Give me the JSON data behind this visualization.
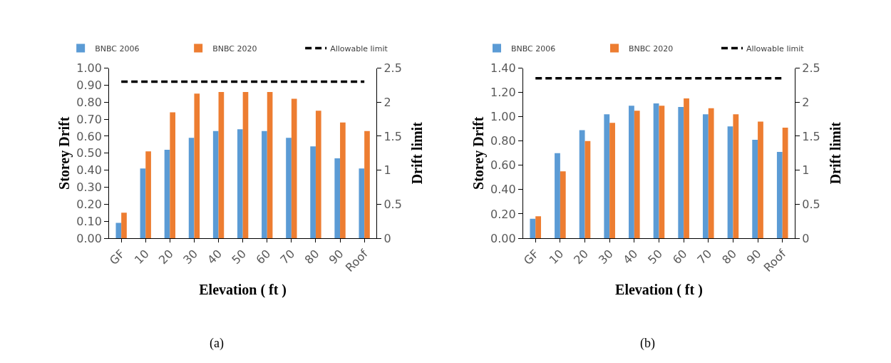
{
  "chart_data": [
    {
      "type": "bar",
      "xlabel": "Elevation ( ft )",
      "ylabel": "Storey Drift",
      "y2label": "Drift limit",
      "categories": [
        "GF",
        "10",
        "20",
        "30",
        "40",
        "50",
        "60",
        "70",
        "80",
        "90",
        "Roof"
      ],
      "series": [
        {
          "name": "BNBC 2006",
          "color": "#5b9bd5",
          "values": [
            0.09,
            0.41,
            0.52,
            0.59,
            0.63,
            0.64,
            0.63,
            0.59,
            0.54,
            0.47,
            0.41
          ]
        },
        {
          "name": "BNBC 2020",
          "color": "#ed7d31",
          "values": [
            0.15,
            0.51,
            0.74,
            0.85,
            0.86,
            0.86,
            0.86,
            0.82,
            0.75,
            0.68,
            0.63
          ]
        },
        {
          "name": "Allowable limit",
          "color": "#000000",
          "type": "line",
          "axis": "y2",
          "line_style": "dashed",
          "values": [
            2.3,
            2.3,
            2.3,
            2.3,
            2.3,
            2.3,
            2.3,
            2.3,
            2.3,
            2.3,
            2.3
          ]
        }
      ],
      "ylim": [
        0,
        1.0
      ],
      "yticks": [
        {
          "value": 0,
          "label": "0.00"
        },
        {
          "value": 0.1,
          "label": "0.10"
        },
        {
          "value": 0.2,
          "label": "0.20"
        },
        {
          "value": 0.3,
          "label": "0.30"
        },
        {
          "value": 0.4,
          "label": "0.40"
        },
        {
          "value": 0.5,
          "label": "0.50"
        },
        {
          "value": 0.6,
          "label": "0.60"
        },
        {
          "value": 0.7,
          "label": "0.70"
        },
        {
          "value": 0.8,
          "label": "0.80"
        },
        {
          "value": 0.9,
          "label": "0.90"
        },
        {
          "value": 1.0,
          "label": "1.00"
        }
      ],
      "y2lim": [
        0,
        2.5
      ],
      "y2ticks": [
        0,
        0.5,
        1,
        1.5,
        2,
        2.5
      ],
      "legend": "top",
      "annotations": [
        "(a)"
      ]
    },
    {
      "type": "bar",
      "xlabel": "Elevation ( ft )",
      "ylabel": "Storey Drift",
      "y2label": "Drift limit",
      "categories": [
        "GF",
        "10",
        "20",
        "30",
        "40",
        "50",
        "60",
        "70",
        "80",
        "90",
        "Roof"
      ],
      "series": [
        {
          "name": "BNBC 2006",
          "color": "#5b9bd5",
          "values": [
            0.16,
            0.7,
            0.89,
            1.02,
            1.09,
            1.11,
            1.08,
            1.02,
            0.92,
            0.81,
            0.71
          ]
        },
        {
          "name": "BNBC 2020",
          "color": "#ed7d31",
          "values": [
            0.18,
            0.55,
            0.8,
            0.95,
            1.05,
            1.09,
            1.15,
            1.07,
            1.02,
            0.96,
            0.91
          ]
        },
        {
          "name": "Allowable limit",
          "color": "#000000",
          "type": "line",
          "axis": "y2",
          "line_style": "dashed",
          "values": [
            2.35,
            2.35,
            2.35,
            2.35,
            2.35,
            2.35,
            2.35,
            2.35,
            2.35,
            2.35,
            2.35
          ]
        }
      ],
      "ylim": [
        0,
        1.4
      ],
      "yticks": [
        {
          "value": 0,
          "label": "0.00"
        },
        {
          "value": 0.2,
          "label": "0.20"
        },
        {
          "value": 0.4,
          "label": "0.40"
        },
        {
          "value": 0.6,
          "label": "0.60"
        },
        {
          "value": 0.8,
          "label": "0.80"
        },
        {
          "value": 1.0,
          "label": "1.00"
        },
        {
          "value": 1.2,
          "label": "1.20"
        },
        {
          "value": 1.4,
          "label": "1.40"
        }
      ],
      "y2lim": [
        0,
        2.5
      ],
      "y2ticks": [
        0,
        0.5,
        1,
        1.5,
        2,
        2.5
      ],
      "legend": "top",
      "annotations": [
        "(b)"
      ]
    }
  ]
}
